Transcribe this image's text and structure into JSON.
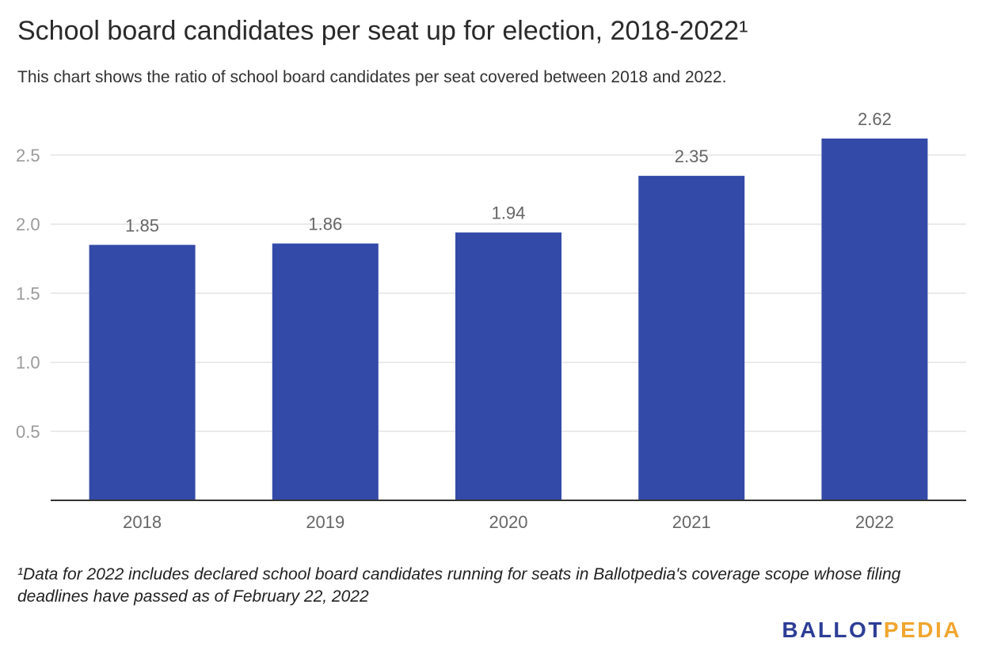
{
  "chart_data": {
    "type": "bar",
    "title": "School board candidates per seat up for election, 2018-2022¹",
    "subtitle": "This chart shows the ratio of school board candidates per seat covered between 2018 and 2022.",
    "categories": [
      "2018",
      "2019",
      "2020",
      "2021",
      "2022"
    ],
    "values": [
      1.85,
      1.86,
      1.94,
      2.35,
      2.62
    ],
    "data_labels": [
      "1.85",
      "1.86",
      "1.94",
      "2.35",
      "2.62"
    ],
    "y_ticks": [
      0.5,
      1.0,
      1.5,
      2.0,
      2.5
    ],
    "y_tick_labels": [
      "0.5",
      "1.0",
      "1.5",
      "2.0",
      "2.5"
    ],
    "ylim": [
      0,
      2.62
    ],
    "xlabel": "",
    "ylabel": "",
    "grid": true,
    "bar_color": "#334aa8"
  },
  "footnote": "¹Data for 2022 includes declared school board candidates running for seats in Ballotpedia's coverage scope whose filing deadlines have passed as of February 22, 2022",
  "logo": {
    "part1": "BALLOT",
    "part2": "PEDIA",
    "color1": "#2d3e96",
    "color2": "#f0a630"
  }
}
